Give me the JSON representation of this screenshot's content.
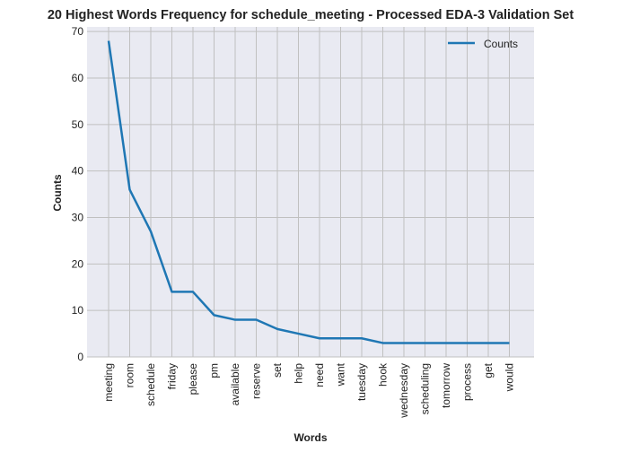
{
  "chart_data": {
    "type": "line",
    "title": "20 Highest Words Frequency for schedule_meeting - Processed EDA-3 Validation Set",
    "xlabel": "Words",
    "ylabel": "Counts",
    "categories": [
      "meeting",
      "room",
      "schedule",
      "friday",
      "please",
      "pm",
      "available",
      "reserve",
      "set",
      "help",
      "need",
      "want",
      "tuesday",
      "hook",
      "wednesday",
      "scheduling",
      "tomorrow",
      "process",
      "get",
      "would"
    ],
    "series": [
      {
        "name": "Counts",
        "color": "#1f77b4",
        "values": [
          68,
          36,
          27,
          14,
          14,
          9,
          8,
          8,
          6,
          5,
          4,
          4,
          4,
          3,
          3,
          3,
          3,
          3,
          3,
          3
        ]
      }
    ],
    "ylim": [
      0,
      71
    ],
    "yticks": [
      "0",
      "10",
      "20",
      "30",
      "40",
      "50",
      "60",
      "70"
    ],
    "grid": true,
    "legend": "top-right",
    "colors": {
      "background": "#e9eaf2",
      "grid": "#c0c0c0",
      "line": "#1f77b4"
    }
  }
}
